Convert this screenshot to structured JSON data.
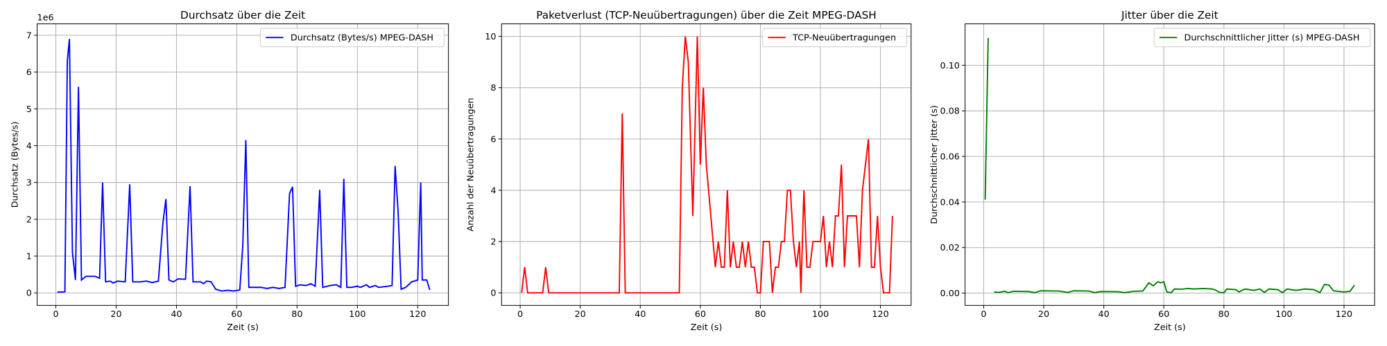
{
  "chart_data": [
    {
      "type": "line",
      "title": "Durchsatz über die Zeit",
      "xlabel": "Zeit (s)",
      "ylabel": "Durchsatz (Bytes/s)",
      "y_offset_label": "1e6",
      "x": [
        0.5,
        3,
        3.8,
        4.5,
        5.5,
        6.5,
        7.5,
        8.5,
        10,
        13,
        14.5,
        15.5,
        16.5,
        18,
        19,
        20.5,
        23,
        24.5,
        25.5,
        28,
        30,
        32,
        34,
        35.5,
        36.5,
        37.5,
        39,
        40.5,
        43,
        44.5,
        45.5,
        48,
        49,
        50,
        51.5,
        53,
        55,
        57,
        59,
        61,
        62,
        63,
        64,
        68,
        70,
        72,
        74,
        76,
        77.5,
        78.5,
        79.5,
        81,
        83,
        84.5,
        86,
        87.5,
        88.5,
        91,
        93,
        94.5,
        95.5,
        96.5,
        98,
        100,
        101,
        103,
        104,
        106,
        107,
        110,
        111.5,
        112.5,
        113.5,
        114.5,
        116,
        118,
        120,
        121,
        121.5,
        123,
        124
      ],
      "series": [
        {
          "name": "Durchsatz (Bytes/s) MPEG-DASH",
          "color": "#0000ff",
          "values": [
            20000,
            30000,
            6300000,
            6900000,
            1100000,
            350000,
            5600000,
            350000,
            450000,
            450000,
            400000,
            3000000,
            300000,
            320000,
            270000,
            320000,
            300000,
            2950000,
            300000,
            300000,
            320000,
            280000,
            320000,
            1900000,
            2550000,
            350000,
            300000,
            380000,
            370000,
            2900000,
            300000,
            300000,
            250000,
            320000,
            300000,
            100000,
            50000,
            70000,
            50000,
            80000,
            1300000,
            4150000,
            150000,
            150000,
            120000,
            150000,
            120000,
            150000,
            2700000,
            2880000,
            180000,
            220000,
            200000,
            250000,
            180000,
            2800000,
            150000,
            200000,
            220000,
            150000,
            3100000,
            150000,
            150000,
            180000,
            150000,
            220000,
            150000,
            200000,
            150000,
            180000,
            200000,
            3450000,
            2200000,
            100000,
            150000,
            300000,
            350000,
            3000000,
            350000,
            350000,
            80000
          ]
        }
      ],
      "xlim": [
        -6.2,
        130.2
      ],
      "ylim": [
        -340000,
        7310000
      ],
      "xticks": [
        0,
        20,
        40,
        60,
        80,
        100,
        120
      ],
      "yticks": [
        0,
        {
          "value": 1000000,
          "label": "1"
        },
        {
          "value": 2000000,
          "label": "2"
        },
        {
          "value": 3000000,
          "label": "3"
        },
        {
          "value": 4000000,
          "label": "4"
        },
        {
          "value": 5000000,
          "label": "5"
        },
        {
          "value": 6000000,
          "label": "6"
        },
        {
          "value": 7000000,
          "label": "7"
        }
      ],
      "grid": true,
      "legend": "upper right"
    },
    {
      "type": "line",
      "title": "Paketverlust (TCP-Neuübertragungen) über die Zeit MPEG-DASH",
      "xlabel": "Zeit (s)",
      "ylabel": "Anzahl der Neuübertragungen",
      "x": [
        0.5,
        1.5,
        2.5,
        7.5,
        8.5,
        9.5,
        33,
        34,
        35,
        53,
        54,
        55,
        56,
        57.5,
        59,
        60,
        61,
        62,
        63.5,
        65,
        66,
        67,
        68,
        69,
        70,
        71,
        72,
        73,
        74,
        75,
        76,
        77,
        78,
        79,
        80,
        81,
        82,
        83,
        84,
        85,
        86,
        87,
        88,
        89,
        90,
        91,
        92,
        93,
        93.5,
        94.5,
        95.5,
        96.5,
        97.5,
        100,
        101,
        102,
        103,
        104,
        105,
        106,
        107,
        108,
        109,
        112,
        113,
        114,
        116,
        117,
        118,
        119,
        120,
        121,
        123,
        124
      ],
      "series": [
        {
          "name": "TCP-Neuübertragungen",
          "color": "#ff0000",
          "values": [
            0,
            1,
            0,
            0,
            1,
            0,
            0,
            7,
            0,
            0,
            8,
            10,
            9,
            3,
            10,
            5,
            8,
            5,
            3,
            1,
            2,
            1,
            1,
            4,
            1,
            2,
            1,
            1,
            2,
            1,
            2,
            1,
            1,
            0,
            0,
            2,
            2,
            2,
            0,
            1,
            1,
            2,
            2,
            4,
            4,
            2,
            1,
            2,
            0,
            4,
            1,
            1,
            2,
            2,
            3,
            1,
            2,
            1,
            3,
            3,
            5,
            1,
            3,
            3,
            1,
            4,
            6,
            1,
            1,
            3,
            1,
            0,
            0,
            3
          ]
        }
      ],
      "xlim": [
        -6.2,
        130.2
      ],
      "ylim": [
        -0.49,
        10.49
      ],
      "xticks": [
        0,
        20,
        40,
        60,
        80,
        100,
        120
      ],
      "yticks": [
        0,
        2,
        4,
        6,
        8,
        10
      ],
      "grid": true,
      "legend": "upper right"
    },
    {
      "type": "line",
      "title": "Jitter über die Zeit",
      "xlabel": "Zeit (s)",
      "ylabel": "Durchschnittlicher Jitter (s)",
      "x": [
        0.5,
        1.5,
        2.5,
        3.5,
        5,
        7,
        8,
        10,
        15,
        17,
        19,
        25,
        28,
        30,
        35,
        37,
        39,
        45,
        47,
        50,
        53,
        55,
        56.5,
        58,
        59,
        60,
        61,
        62.5,
        63.5,
        66,
        68,
        70,
        73,
        76,
        77,
        78.5,
        80,
        81,
        84,
        85,
        87,
        90,
        92,
        93.5,
        95,
        98,
        99.5,
        101,
        104,
        107,
        110,
        112,
        113.5,
        115,
        116.5,
        120,
        122,
        123.5
      ],
      "series": [
        {
          "name": "Durchschnittlicher Jitter (s) MPEG-DASH",
          "color": "#008000",
          "values": [
            0.041,
            0.112,
            null,
            0.0005,
            0.0003,
            0.0008,
            0.0002,
            0.0008,
            0.0007,
            0.0002,
            0.001,
            0.0009,
            0.0003,
            0.001,
            0.0009,
            0.0002,
            0.0007,
            0.0006,
            0.0002,
            0.0008,
            0.0009,
            0.0045,
            0.0032,
            0.005,
            0.0045,
            0.005,
            0.0005,
            0.0002,
            0.0018,
            0.0017,
            0.002,
            0.0018,
            0.002,
            0.0018,
            0.0015,
            0.0003,
            0.0002,
            0.0018,
            0.0015,
            0.0005,
            0.0018,
            0.0012,
            0.0018,
            0.0003,
            0.0018,
            0.0015,
            0.0002,
            0.0018,
            0.0012,
            0.0018,
            0.0015,
            0.0002,
            0.0038,
            0.0035,
            0.001,
            0.0005,
            0.0008,
            0.0035
          ]
        }
      ],
      "xlim": [
        -6.2,
        130.2
      ],
      "ylim": [
        -0.0054,
        0.1182
      ],
      "xticks": [
        0,
        20,
        40,
        60,
        80,
        100,
        120
      ],
      "yticks": [
        {
          "value": 0,
          "label": "0.00"
        },
        0.02,
        0.04,
        0.06,
        0.08,
        {
          "value": 0.1,
          "label": "0.10"
        }
      ],
      "grid": true,
      "legend": "upper right"
    }
  ]
}
